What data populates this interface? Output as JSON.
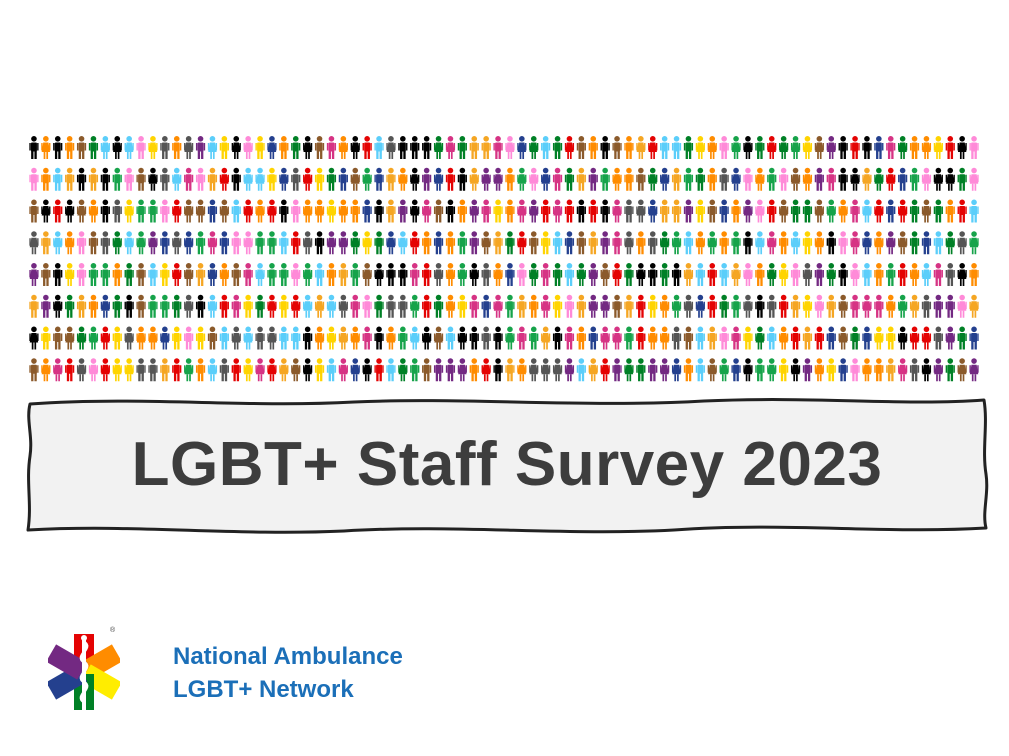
{
  "banner": {
    "title": "LGBT+ Staff Survey 2023"
  },
  "org": {
    "line1": "National Ambulance",
    "line2": "LGBT+ Network",
    "color": "#1b6fb8"
  },
  "logo": {
    "icon": "star-of-life-rainbow-icon",
    "colors": [
      "#e40303",
      "#ff8c00",
      "#ffed00",
      "#008026",
      "#24408e",
      "#732982"
    ],
    "mark": "®"
  },
  "people": {
    "icon": "person-icon",
    "palette": [
      "#e40303",
      "#ff8c00",
      "#ffd400",
      "#008026",
      "#24408e",
      "#732982",
      "#000000",
      "#ff8ad8",
      "#8b5a2b",
      "#5bcefa",
      "#d63384",
      "#16a34a",
      "#f5a623",
      "#555555"
    ]
  },
  "colors": {
    "title_text": "#3d3d3d",
    "banner_fill": "#f2f2f2",
    "banner_stroke": "#222222"
  }
}
